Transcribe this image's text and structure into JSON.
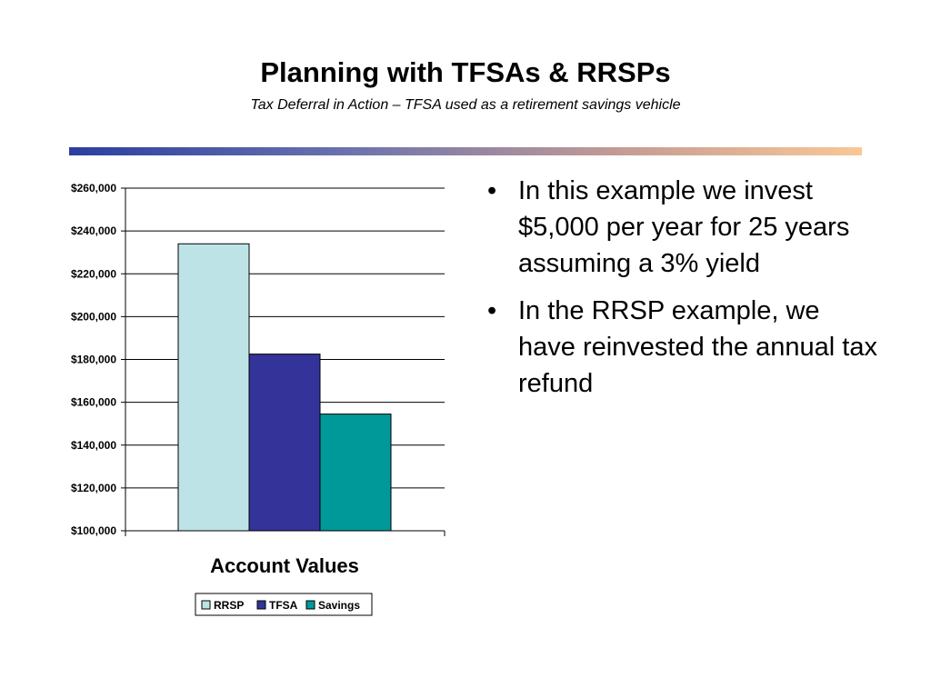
{
  "slide": {
    "title": "Planning with TFSAs & RRSPs",
    "subtitle": "Tax Deferral in Action – TFSA used as a retirement savings vehicle"
  },
  "colors": {
    "accent_gradient": [
      "#2a3fa0",
      "#6b72ad",
      "#c69c94",
      "#f8c896"
    ]
  },
  "bullets": [
    "In this example we invest $5,000 per year for 25 years assuming a 3% yield",
    "In the RRSP example, we have reinvested the annual tax refund"
  ],
  "chart_data": {
    "type": "bar",
    "title": "",
    "xlabel": "Account Values",
    "ylabel": "",
    "categories": [
      ""
    ],
    "series": [
      {
        "name": "RRSP",
        "values": [
          234000
        ],
        "color": "#bde3e6"
      },
      {
        "name": "TFSA",
        "values": [
          182500
        ],
        "color": "#333399"
      },
      {
        "name": "Savings",
        "values": [
          154500
        ],
        "color": "#009999"
      }
    ],
    "ylim": [
      100000,
      260000
    ],
    "yticks": [
      "$100,000",
      "$120,000",
      "$140,000",
      "$160,000",
      "$180,000",
      "$200,000",
      "$220,000",
      "$240,000",
      "$260,000"
    ],
    "ytick_values": [
      100000,
      120000,
      140000,
      160000,
      180000,
      200000,
      220000,
      240000,
      260000
    ],
    "grid": true,
    "legend": "bottom"
  }
}
